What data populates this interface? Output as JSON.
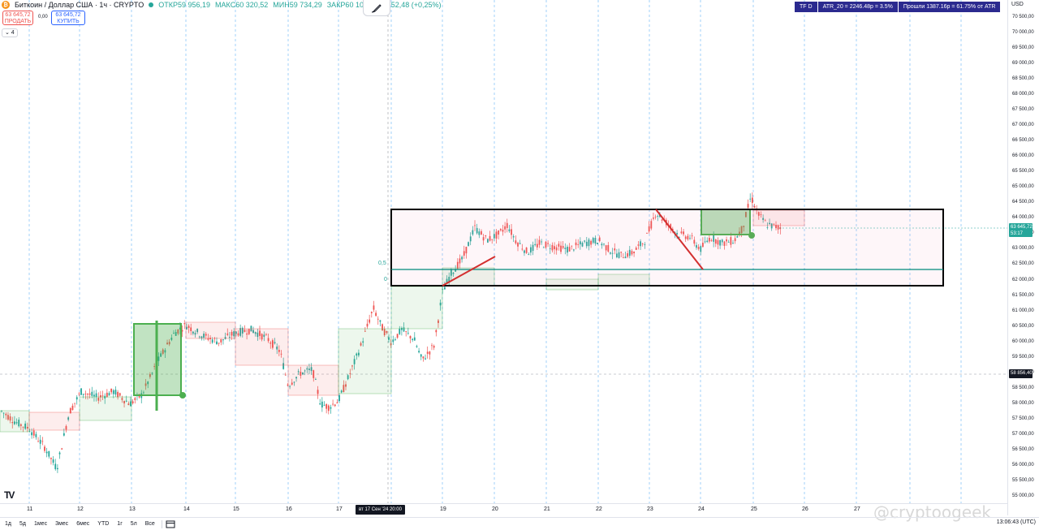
{
  "legend": {
    "symbol": "Биткоин / Доллар США · 1ч · CRYPTO",
    "open": "ОТКР59 956,19",
    "high": "МАКС60 320,52",
    "low": "МИН59 734,29",
    "close": "ЗАКР60 108,67",
    "change": "+152,48 (+0,25%)"
  },
  "trade": {
    "sell_price": "63 645,72",
    "sell_label": "ПРОДАТЬ",
    "spread": "0,00",
    "buy_price": "63 645,72",
    "buy_label": "КУПИТЬ",
    "collapse": "⌄ 4"
  },
  "indicator": {
    "tf": "TF D",
    "atr": "ATR_20 = 2246.48р = 3.5%",
    "passed": "Прошли 1387.16р = 61.75% от ATR"
  },
  "price_axis": {
    "currency": "USD",
    "ticks": [
      "70 500,00",
      "70 000,00",
      "69 500,00",
      "69 000,00",
      "68 500,00",
      "68 000,00",
      "67 500,00",
      "67 000,00",
      "66 500,00",
      "66 000,00",
      "65 500,00",
      "65 000,00",
      "64 500,00",
      "64 000,00",
      "63 500,00",
      "63 000,00",
      "62 500,00",
      "62 000,00",
      "61 500,00",
      "61 000,00",
      "60 500,00",
      "60 000,00",
      "59 500,00",
      "59 000,00",
      "58 500,00",
      "58 000,00",
      "57 500,00",
      "57 000,00",
      "56 500,00",
      "56 000,00",
      "55 500,00",
      "55 000,00"
    ],
    "last_price": "63 645,72",
    "countdown": "53:17",
    "crosshair_price": "58 856,40"
  },
  "time_axis": {
    "labels": [
      "11",
      "12",
      "13",
      "14",
      "15",
      "16",
      "17",
      "19",
      "20",
      "21",
      "22",
      "23",
      "24",
      "25",
      "26",
      "27"
    ],
    "crosshair": "вт 17 Сен '24  20:00"
  },
  "fib": {
    "level_top": "0,5",
    "level_bottom": "0"
  },
  "bottom_bar": {
    "timeframes": [
      "1д",
      "5д",
      "1мес",
      "3мес",
      "6мес",
      "YTD",
      "1г",
      "5л",
      "Все"
    ],
    "clock": "13:06:43 (UTC)"
  },
  "watermark": "@cryptoogeek",
  "colors": {
    "up": "#26a69a",
    "down": "#ef5350",
    "box_green": "#4caf50",
    "indicator_bg": "#2b2a8f",
    "trend_line": "#d32f2f"
  }
}
